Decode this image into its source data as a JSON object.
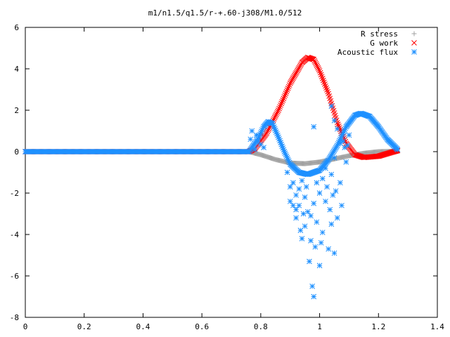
{
  "chart_data": {
    "type": "scatter",
    "title": "m1/n1.5/q1.5/r-+.60-j308/M1.0/512",
    "xlabel": "",
    "ylabel": "",
    "xlim": [
      0,
      1.4
    ],
    "ylim": [
      -8,
      6
    ],
    "xticks": [
      "0",
      "0.2",
      "0.4",
      "0.6",
      "0.8",
      "1",
      "1.2",
      "1.4"
    ],
    "yticks": [
      "-8",
      "-6",
      "-4",
      "-2",
      "0",
      "2",
      "4",
      "6"
    ],
    "xtick_values": [
      0,
      0.2,
      0.4,
      0.6,
      0.8,
      1.0,
      1.2,
      1.4
    ],
    "ytick_values": [
      -8,
      -6,
      -4,
      -2,
      0,
      2,
      4,
      6
    ],
    "grid": false,
    "legend_position": "top-right",
    "series": [
      {
        "name": "R stress",
        "marker": "plus",
        "color": "#a0a0a0",
        "curve": [
          [
            0.0,
            0.0
          ],
          [
            0.76,
            0.0
          ],
          [
            0.8,
            -0.15
          ],
          [
            0.85,
            -0.38
          ],
          [
            0.9,
            -0.55
          ],
          [
            0.95,
            -0.58
          ],
          [
            1.0,
            -0.5
          ],
          [
            1.05,
            -0.35
          ],
          [
            1.1,
            -0.2
          ],
          [
            1.15,
            -0.08
          ],
          [
            1.2,
            0.0
          ],
          [
            1.265,
            0.02
          ]
        ]
      },
      {
        "name": "G work",
        "marker": "cross",
        "color": "#ff0000",
        "curve": [
          [
            0.0,
            0.0
          ],
          [
            0.76,
            0.0
          ],
          [
            0.78,
            0.15
          ],
          [
            0.82,
            0.9
          ],
          [
            0.86,
            2.0
          ],
          [
            0.9,
            3.3
          ],
          [
            0.94,
            4.3
          ],
          [
            0.96,
            4.55
          ],
          [
            0.98,
            4.45
          ],
          [
            1.0,
            3.9
          ],
          [
            1.03,
            2.8
          ],
          [
            1.06,
            1.4
          ],
          [
            1.09,
            0.4
          ],
          [
            1.12,
            -0.15
          ],
          [
            1.15,
            -0.28
          ],
          [
            1.2,
            -0.22
          ],
          [
            1.24,
            -0.05
          ],
          [
            1.265,
            0.05
          ]
        ]
      },
      {
        "name": "Acoustic flux",
        "marker": "star",
        "color": "#1e90ff",
        "curve": [
          [
            0.0,
            0.0
          ],
          [
            0.76,
            0.0
          ],
          [
            0.79,
            0.6
          ],
          [
            0.81,
            1.2
          ],
          [
            0.825,
            1.45
          ],
          [
            0.84,
            1.35
          ],
          [
            0.86,
            0.7
          ],
          [
            0.88,
            0.0
          ],
          [
            0.9,
            -0.6
          ],
          [
            0.93,
            -1.0
          ],
          [
            0.96,
            -1.1
          ],
          [
            1.0,
            -0.9
          ],
          [
            1.03,
            -0.4
          ],
          [
            1.06,
            0.3
          ],
          [
            1.09,
            1.2
          ],
          [
            1.12,
            1.75
          ],
          [
            1.14,
            1.85
          ],
          [
            1.17,
            1.7
          ],
          [
            1.2,
            1.2
          ],
          [
            1.23,
            0.6
          ],
          [
            1.265,
            0.1
          ]
        ],
        "scatter": [
          [
            0.765,
            0.6
          ],
          [
            0.77,
            1.0
          ],
          [
            0.775,
            0.3
          ],
          [
            0.78,
            0.1
          ],
          [
            0.785,
            0.8
          ],
          [
            0.79,
            0.5
          ],
          [
            0.8,
            0.35
          ],
          [
            0.81,
            0.2
          ],
          [
            0.89,
            -1.0
          ],
          [
            0.9,
            -1.7
          ],
          [
            0.9,
            -2.4
          ],
          [
            0.91,
            -1.5
          ],
          [
            0.91,
            -2.6
          ],
          [
            0.92,
            -2.1
          ],
          [
            0.92,
            -3.2
          ],
          [
            0.92,
            -2.8
          ],
          [
            0.93,
            -1.8
          ],
          [
            0.93,
            -2.6
          ],
          [
            0.935,
            -3.8
          ],
          [
            0.94,
            -1.4
          ],
          [
            0.94,
            -4.2
          ],
          [
            0.945,
            -3.0
          ],
          [
            0.95,
            -2.2
          ],
          [
            0.95,
            -3.6
          ],
          [
            0.955,
            -1.7
          ],
          [
            0.96,
            -2.9
          ],
          [
            0.965,
            -5.3
          ],
          [
            0.97,
            -4.3
          ],
          [
            0.97,
            -3.1
          ],
          [
            0.975,
            -6.5
          ],
          [
            0.98,
            -7.0
          ],
          [
            0.98,
            -2.5
          ],
          [
            0.985,
            -4.6
          ],
          [
            0.99,
            -1.5
          ],
          [
            0.99,
            -3.4
          ],
          [
            1.0,
            -5.5
          ],
          [
            1.0,
            -2.0
          ],
          [
            1.005,
            -4.4
          ],
          [
            1.01,
            -1.3
          ],
          [
            1.01,
            -3.9
          ],
          [
            1.02,
            -2.4
          ],
          [
            1.02,
            -0.8
          ],
          [
            1.025,
            -1.7
          ],
          [
            1.03,
            -4.7
          ],
          [
            1.035,
            -2.8
          ],
          [
            1.04,
            -3.5
          ],
          [
            1.04,
            -1.1
          ],
          [
            1.045,
            -2.1
          ],
          [
            1.05,
            -4.9
          ],
          [
            1.05,
            -0.3
          ],
          [
            1.055,
            -1.9
          ],
          [
            1.06,
            -3.2
          ],
          [
            1.07,
            -1.5
          ],
          [
            1.075,
            -2.6
          ],
          [
            1.08,
            0.5
          ],
          [
            1.09,
            -0.5
          ],
          [
            1.1,
            0.8
          ],
          [
            0.98,
            1.2
          ],
          [
            1.04,
            2.2
          ],
          [
            1.05,
            1.5
          ],
          [
            1.06,
            1.1
          ],
          [
            1.07,
            0.4
          ],
          [
            1.085,
            0.2
          ],
          [
            1.095,
            0.3
          ]
        ]
      }
    ]
  }
}
